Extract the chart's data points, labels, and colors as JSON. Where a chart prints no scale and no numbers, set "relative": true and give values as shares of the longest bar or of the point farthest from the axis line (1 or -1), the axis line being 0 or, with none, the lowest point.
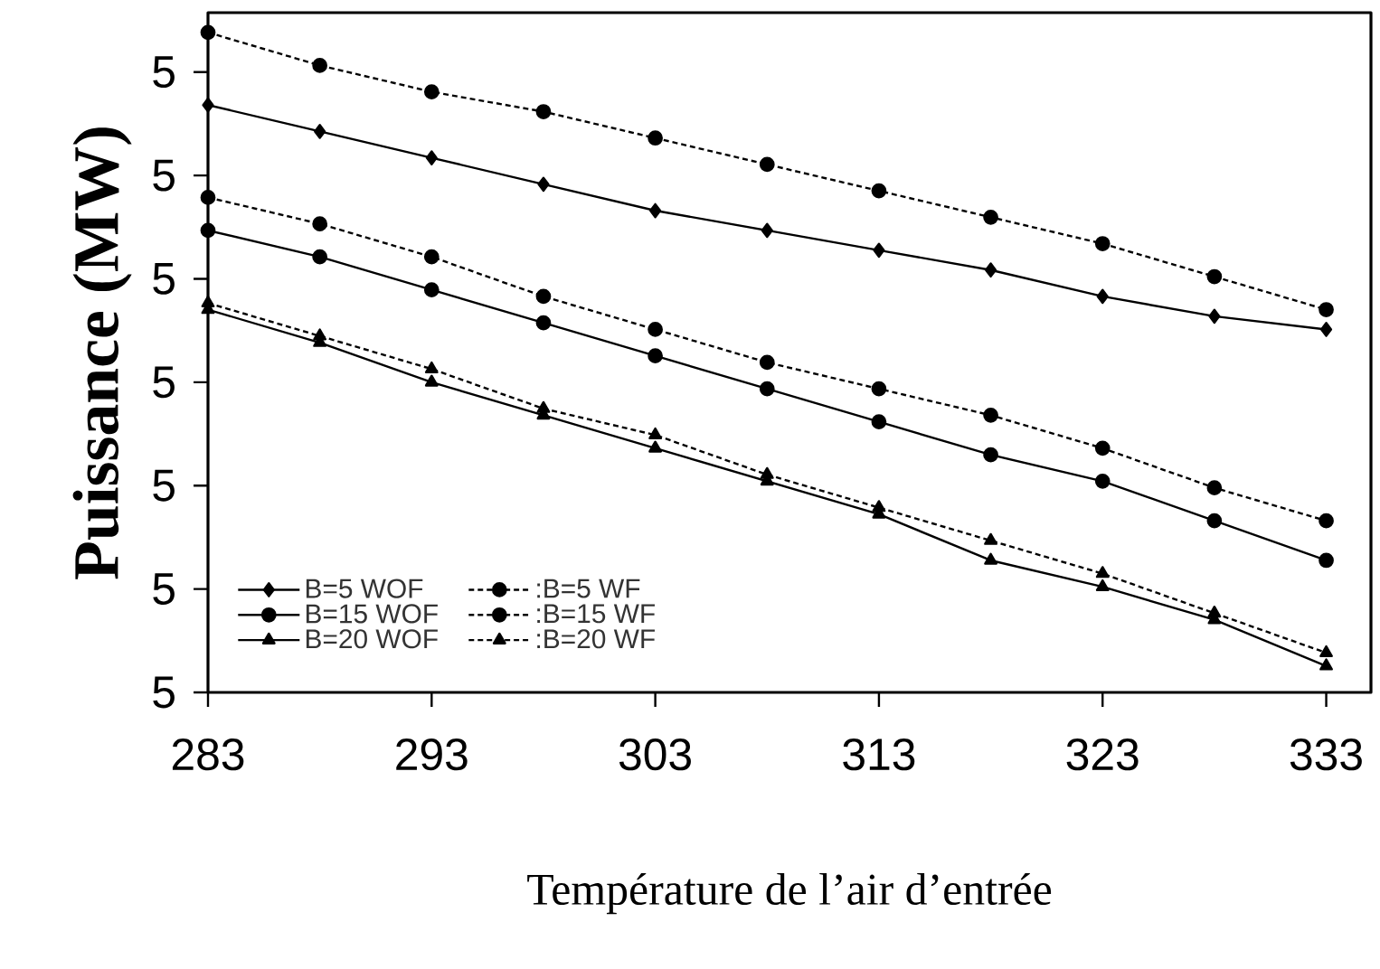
{
  "chart_data": {
    "type": "line",
    "relative": true,
    "xlabel": "Température de l’air d’entrée",
    "ylabel": "Puissance (MW)",
    "x": [
      283,
      288,
      293,
      298,
      303,
      308,
      313,
      318,
      323,
      328,
      333
    ],
    "xlim": [
      283,
      335
    ],
    "xticks": [
      283,
      293,
      303,
      313,
      323,
      333
    ],
    "annotations": [
      "5",
      "5",
      "5",
      "5",
      "5",
      "5",
      "5"
    ],
    "legend": "bottom left",
    "grid": false,
    "series": [
      {
        "name": "B=5 WOF",
        "color": "#000000",
        "marker": "diamond",
        "line_style": "solid",
        "values": [
          0.89,
          0.85,
          0.81,
          0.77,
          0.73,
          0.7,
          0.67,
          0.64,
          0.6,
          0.57,
          0.55
        ]
      },
      {
        "name": ":B=5 WF",
        "color": "#000000",
        "marker": "circle",
        "line_style": "dashed",
        "values": [
          1.0,
          0.95,
          0.91,
          0.88,
          0.84,
          0.8,
          0.76,
          0.72,
          0.68,
          0.63,
          0.58
        ]
      },
      {
        "name": "B=15 WOF",
        "color": "#000000",
        "marker": "circle",
        "line_style": "solid",
        "values": [
          0.7,
          0.66,
          0.61,
          0.56,
          0.51,
          0.46,
          0.41,
          0.36,
          0.32,
          0.26,
          0.2
        ]
      },
      {
        "name": ":B=15 WF",
        "color": "#000000",
        "marker": "circle",
        "line_style": "dashed",
        "values": [
          0.75,
          0.71,
          0.66,
          0.6,
          0.55,
          0.5,
          0.46,
          0.42,
          0.37,
          0.31,
          0.26
        ]
      },
      {
        "name": "B=20 WOF",
        "color": "#000000",
        "marker": "triangle",
        "line_style": "solid",
        "values": [
          0.58,
          0.53,
          0.47,
          0.42,
          0.37,
          0.32,
          0.27,
          0.2,
          0.16,
          0.11,
          0.04
        ]
      },
      {
        "name": ":B=20 WF",
        "color": "#000000",
        "marker": "triangle",
        "line_style": "dashed",
        "values": [
          0.59,
          0.54,
          0.49,
          0.43,
          0.39,
          0.33,
          0.28,
          0.23,
          0.18,
          0.12,
          0.06
        ]
      }
    ]
  }
}
